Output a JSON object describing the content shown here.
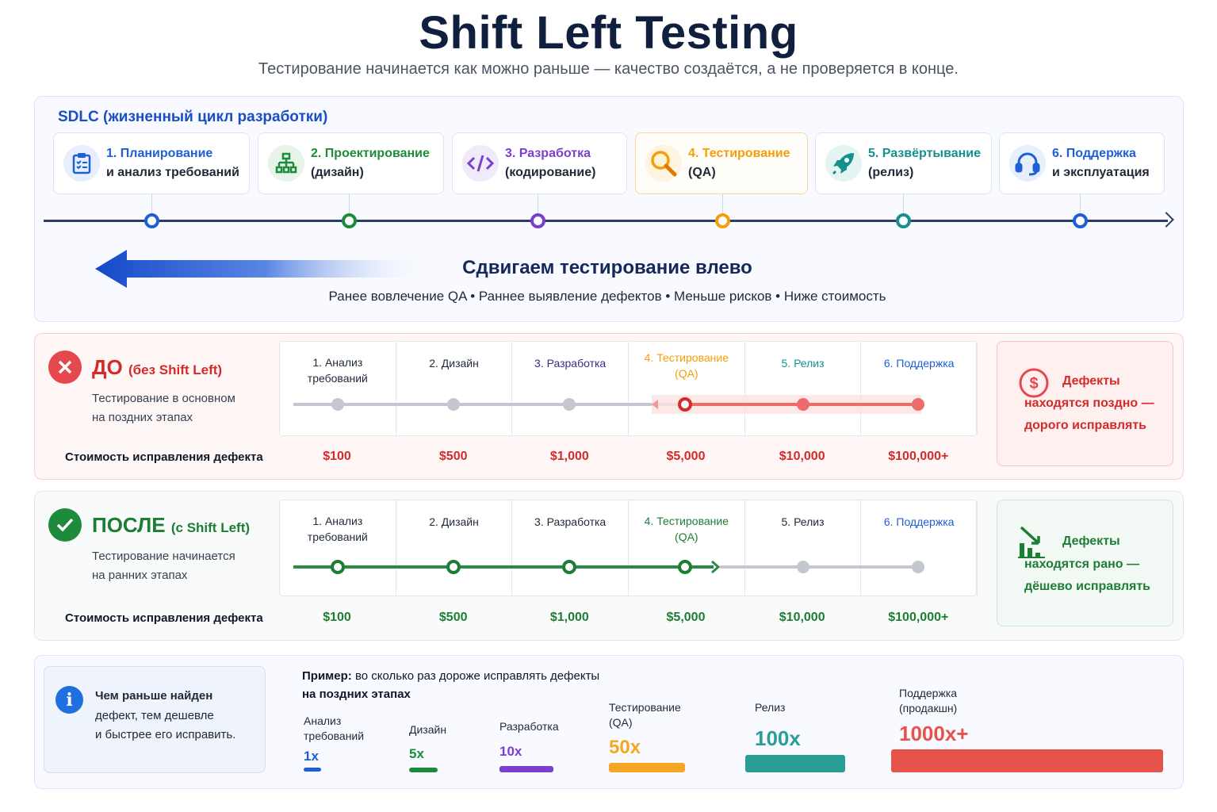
{
  "header": {
    "title": "Shift Left Testing",
    "subtitle": "Тестирование начинается как можно раньше — качество создаётся, а не проверяется в конце."
  },
  "sdlc": {
    "label": "SDLC (жизненный цикл разработки)",
    "stages": [
      {
        "line1": "1. Планирование",
        "line2": "и анализ требований",
        "icon": "clipboard-icon",
        "color": "#1f5fd6"
      },
      {
        "line1": "2. Проектирование",
        "line2": "(дизайн)",
        "icon": "hierarchy-icon",
        "color": "#1e8a3c"
      },
      {
        "line1": "3. Разработка",
        "line2": "(кодирование)",
        "icon": "code-icon",
        "color": "#7b3fd0"
      },
      {
        "line1": "4. Тестирование",
        "line2": "(QA)",
        "icon": "magnifier-icon",
        "color": "#f59e0b"
      },
      {
        "line1": "5. Развёртывание",
        "line2": "(релиз)",
        "icon": "rocket-icon",
        "color": "#16908f"
      },
      {
        "line1": "6. Поддержка",
        "line2": "и эксплуатация",
        "icon": "headset-icon",
        "color": "#1f5fd6"
      }
    ],
    "shift_title": "Сдвигаем тестирование влево",
    "shift_tagline": "Ранее вовлечение QA • Раннее выявление дефектов • Меньше рисков • Ниже стоимость"
  },
  "before": {
    "heading": "ДО",
    "heading_note": "(без Shift Left)",
    "desc_line1": "Тестирование в основном",
    "desc_line2": "на поздних этапах",
    "columns": [
      "1. Анализ\nтребований",
      "2. Дизайн",
      "3. Разработка",
      "4. Тестирование\n(QA)",
      "5. Релиз",
      "6. Поддержка"
    ],
    "cost_label": "Стоимость исправления дефекта",
    "costs": [
      "$100",
      "$500",
      "$1,000",
      "$5,000",
      "$10,000",
      "$100,000+"
    ],
    "side_line1": "Дефекты",
    "side_line2": "находятся поздно —",
    "side_line3": "дорого исправлять",
    "accent": "#d42a2a"
  },
  "after": {
    "heading": "ПОСЛЕ",
    "heading_note": "(с Shift Left)",
    "desc_line1": "Тестирование начинается",
    "desc_line2": "на ранних этапах",
    "columns": [
      "1. Анализ\nтребований",
      "2. Дизайн",
      "3. Разработка",
      "4. Тестирование\n(QA)",
      "5. Релиз",
      "6. Поддержка"
    ],
    "cost_label": "Стоимость исправления дефекта",
    "costs": [
      "$100",
      "$500",
      "$1,000",
      "$5,000",
      "$10,000",
      "$100,000+"
    ],
    "side_line1": "Дефекты",
    "side_line2": "находятся рано —",
    "side_line3": "дёшево исправлять",
    "accent": "#1e7d34"
  },
  "info": {
    "line1": "Чем раньше найден",
    "line2": "дефект, тем дешевле",
    "line3": "и быстрее его исправить."
  },
  "example": {
    "bold": "Пример:",
    "text": "во сколько раз дороже исправлять дефекты",
    "line2": "на поздних этапах",
    "items": [
      {
        "stage": "Анализ\nтребований",
        "multiplier": "1x",
        "color": "#1f5fd6"
      },
      {
        "stage": "Дизайн",
        "multiplier": "5x",
        "color": "#1e8a3c"
      },
      {
        "stage": "Разработка",
        "multiplier": "10x",
        "color": "#7b3fd0"
      },
      {
        "stage": "Тестирование\n(QA)",
        "multiplier": "50x",
        "color": "#f5a623"
      },
      {
        "stage": "Релиз",
        "multiplier": "100x",
        "color": "#2a9d97"
      },
      {
        "stage": "Поддержка\n(продакшн)",
        "multiplier": "1000x+",
        "color": "#e5534b"
      }
    ]
  }
}
